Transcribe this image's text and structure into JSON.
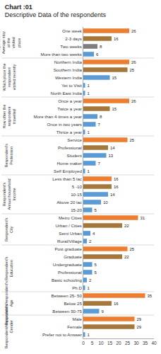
{
  "chart_data": {
    "type": "bar",
    "orientation": "horizontal",
    "title": "Chart :01",
    "subtitle": "Descriptive Data of the respondents",
    "data_labels": true,
    "grid": false,
    "xlim": [
      0,
      40
    ],
    "xticks": [
      0,
      5,
      10,
      15,
      20,
      25,
      30,
      35,
      40
    ],
    "groups": [
      {
        "label": "Respondent's Average stay at the visited place",
        "categories": [
          "One week",
          "2-3 days",
          "Two weeks",
          "More than two weeks"
        ],
        "values": [
          26,
          16,
          8,
          6
        ],
        "colors": [
          "#ED7D31",
          "#A5773A",
          "#7F7F7F",
          "#5B9BD5"
        ]
      },
      {
        "label": "Which place the respondent visited recently",
        "categories": [
          "Northern India",
          "Southern India",
          "Western India",
          "Yet to Visit",
          "North East India"
        ],
        "values": [
          26,
          25,
          15,
          1,
          1
        ],
        "colors": [
          "#ED7D31",
          "#A5773A",
          "#5B9BD5",
          "#5B9BD5",
          "#5B9BD5"
        ]
      },
      {
        "label": "How often the respondent travelled",
        "categories": [
          "Once a year",
          "Twice a year",
          "More than 4 times a year",
          "Once in two years",
          "Thrice a year"
        ],
        "values": [
          26,
          15,
          8,
          7,
          1
        ],
        "colors": [
          "#ED7D31",
          "#A5773A",
          "#5B9BD5",
          "#5B9BD5",
          "#5B9BD5"
        ]
      },
      {
        "label": "Respondent's Profession",
        "categories": [
          "Service",
          "Professional",
          "Student",
          "Home maker",
          "Self Employed"
        ],
        "values": [
          25,
          14,
          13,
          7,
          1
        ],
        "colors": [
          "#ED7D31",
          "#A5773A",
          "#5B9BD5",
          "#5B9BD5",
          "#5B9BD5"
        ]
      },
      {
        "label": "Respondent's Annual household Income",
        "categories": [
          "Less than 5 lac",
          "5 -10",
          "10-15",
          "Above 20 lac",
          "15-20"
        ],
        "values": [
          16,
          16,
          14,
          10,
          5
        ],
        "colors": [
          "#ED7D31",
          "#A5773A",
          "#5B9BD5",
          "#5B9BD5",
          "#5B9BD5"
        ]
      },
      {
        "label": "Respondent's City",
        "categories": [
          "Metro Cities",
          "Urban / Cities",
          "Semi Urban",
          "Rural/Village"
        ],
        "values": [
          31,
          22,
          4,
          2
        ],
        "colors": [
          "#ED7D31",
          "#A5773A",
          "#5B9BD5",
          "#5B9BD5"
        ]
      },
      {
        "label": "Respondent's Education",
        "categories": [
          "Post graduate",
          "Graduate",
          "Undergraduate",
          "Professional",
          "Basic schooling",
          "Ph.D"
        ],
        "values": [
          25,
          22,
          5,
          5,
          2,
          1
        ],
        "colors": [
          "#ED7D31",
          "#A5773A",
          "#5B9BD5",
          "#5B9BD5",
          "#5B9BD5",
          "#5B9BD5"
        ]
      },
      {
        "label": "Respondent/respondent's Age",
        "categories": [
          "Between 25- 50",
          "Below 25",
          "Between 50-75"
        ],
        "values": [
          35,
          16,
          9
        ],
        "colors": [
          "#ED7D31",
          "#A5773A",
          "#5B9BD5"
        ]
      },
      {
        "label": "Respondent/respondent's Gender",
        "categories": [
          "Male",
          "Female",
          "Prefer not to Answer"
        ],
        "values": [
          29,
          29,
          1
        ],
        "colors": [
          "#ED7D31",
          "#A5773A",
          "#5B9BD5"
        ]
      }
    ]
  }
}
